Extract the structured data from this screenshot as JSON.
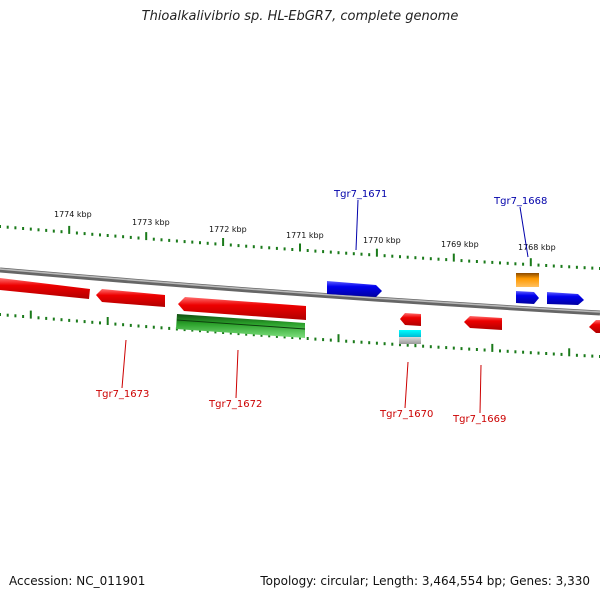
{
  "title": "Thioalkalivibrio sp. HL-EbGR7, complete genome",
  "footer": {
    "accession": "Accession: NC_011901",
    "topology": "Topology: circular; Length: 3,464,554 bp; Genes: 3,330"
  },
  "scale_labels": [
    "1774 kbp",
    "1773 kbp",
    "1772 kbp",
    "1771 kbp",
    "1770 kbp",
    "1769 kbp",
    "1768 kbp"
  ],
  "gene_labels": {
    "tgr7_1673": "Tgr7_1673",
    "tgr7_1672": "Tgr7_1672",
    "tgr7_1671": "Tgr7_1671",
    "tgr7_1670": "Tgr7_1670",
    "tgr7_1669": "Tgr7_1669",
    "tgr7_1668": "Tgr7_1668"
  },
  "colors": {
    "reverse_gene": "#ee0000",
    "forward_gene": "#0000ee",
    "rna": "#22aa22",
    "tick": "#1a7a1a",
    "backbone": "#888888"
  }
}
